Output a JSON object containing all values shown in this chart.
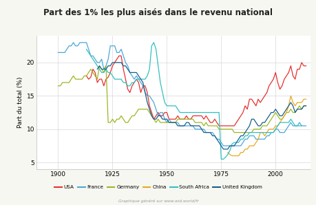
{
  "title": "Part des 1% les plus aisés dans le revenu national",
  "ylabel": "Part du total (%)",
  "footnote": "Graphique généré sur www.wid.world/fr",
  "background_color": "#f7f7f2",
  "plot_bg_color": "#ffffff",
  "ylim": [
    4,
    24
  ],
  "xlim": [
    1890,
    2016
  ],
  "xticks": [
    1900,
    1925,
    1950,
    1975,
    2000
  ],
  "yticks": [
    5,
    10,
    15,
    20
  ],
  "series": {
    "USA": {
      "color": "#e63030",
      "data": {
        "1913": 18.0,
        "1914": 17.5,
        "1915": 17.8,
        "1916": 19.0,
        "1917": 18.5,
        "1918": 17.0,
        "1919": 17.5,
        "1920": 17.5,
        "1921": 16.5,
        "1922": 17.5,
        "1923": 17.8,
        "1924": 18.5,
        "1925": 19.5,
        "1926": 20.0,
        "1927": 20.5,
        "1928": 21.0,
        "1929": 21.0,
        "1930": 19.0,
        "1931": 17.5,
        "1932": 16.0,
        "1933": 15.5,
        "1934": 16.5,
        "1935": 17.0,
        "1936": 17.5,
        "1937": 17.0,
        "1938": 15.5,
        "1939": 16.5,
        "1940": 16.5,
        "1941": 15.5,
        "1942": 13.5,
        "1943": 12.5,
        "1944": 11.5,
        "1945": 12.0,
        "1946": 12.5,
        "1947": 12.0,
        "1948": 12.0,
        "1949": 12.5,
        "1950": 12.5,
        "1951": 11.5,
        "1952": 11.5,
        "1953": 11.5,
        "1954": 11.5,
        "1955": 12.0,
        "1956": 11.5,
        "1957": 11.5,
        "1958": 11.5,
        "1959": 12.0,
        "1960": 11.5,
        "1961": 11.5,
        "1962": 12.0,
        "1963": 12.0,
        "1964": 12.0,
        "1965": 12.0,
        "1966": 12.0,
        "1967": 11.5,
        "1968": 12.0,
        "1969": 11.5,
        "1970": 11.0,
        "1971": 11.0,
        "1972": 11.5,
        "1973": 11.0,
        "1974": 10.5,
        "1975": 10.5,
        "1976": 10.5,
        "1977": 10.5,
        "1978": 10.5,
        "1979": 10.5,
        "1980": 10.5,
        "1981": 10.5,
        "1982": 11.0,
        "1983": 11.5,
        "1984": 12.0,
        "1985": 12.5,
        "1986": 13.5,
        "1987": 13.0,
        "1988": 14.5,
        "1989": 14.5,
        "1990": 14.0,
        "1991": 13.5,
        "1992": 14.5,
        "1993": 14.0,
        "1994": 14.5,
        "1995": 15.0,
        "1996": 15.5,
        "1997": 16.5,
        "1998": 17.0,
        "1999": 17.5,
        "2000": 18.5,
        "2001": 17.0,
        "2002": 16.0,
        "2003": 16.5,
        "2004": 17.5,
        "2005": 18.0,
        "2006": 18.5,
        "2007": 19.5,
        "2008": 18.0,
        "2009": 17.5,
        "2010": 19.0,
        "2011": 19.0,
        "2012": 20.0,
        "2013": 19.5,
        "2014": 19.5
      }
    },
    "France": {
      "color": "#4aa8d8",
      "data": {
        "1900": 21.5,
        "1901": 21.5,
        "1902": 21.5,
        "1903": 21.5,
        "1904": 22.0,
        "1905": 22.5,
        "1906": 22.5,
        "1907": 23.0,
        "1908": 22.5,
        "1909": 22.5,
        "1910": 23.0,
        "1911": 23.0,
        "1912": 23.0,
        "1913": 23.0,
        "1914": 22.0,
        "1915": 21.0,
        "1916": 21.0,
        "1917": 20.5,
        "1918": 20.0,
        "1919": 20.0,
        "1920": 20.5,
        "1921": 19.0,
        "1922": 19.5,
        "1923": 20.5,
        "1924": 22.5,
        "1925": 22.5,
        "1926": 22.5,
        "1927": 21.5,
        "1928": 21.5,
        "1929": 22.0,
        "1930": 21.0,
        "1931": 20.0,
        "1932": 19.5,
        "1933": 18.5,
        "1934": 18.0,
        "1935": 17.5,
        "1936": 18.0,
        "1937": 17.5,
        "1938": 17.0,
        "1939": 16.5,
        "1940": 15.5,
        "1941": 15.0,
        "1942": 15.0,
        "1943": 14.5,
        "1944": 14.0,
        "1945": 13.0,
        "1946": 12.0,
        "1947": 12.5,
        "1948": 12.5,
        "1949": 11.5,
        "1950": 11.0,
        "1951": 11.5,
        "1952": 11.0,
        "1953": 11.0,
        "1954": 11.0,
        "1955": 11.0,
        "1956": 10.5,
        "1957": 10.5,
        "1958": 10.5,
        "1959": 10.5,
        "1960": 10.5,
        "1961": 10.5,
        "1962": 10.5,
        "1963": 10.0,
        "1964": 10.0,
        "1965": 10.0,
        "1966": 10.0,
        "1967": 10.0,
        "1968": 9.5,
        "1969": 9.5,
        "1970": 9.5,
        "1971": 9.5,
        "1972": 9.0,
        "1973": 8.5,
        "1974": 8.5,
        "1975": 8.0,
        "1976": 7.5,
        "1977": 7.5,
        "1978": 7.5,
        "1979": 7.5,
        "1980": 7.5,
        "1981": 7.5,
        "1982": 7.5,
        "1983": 7.5,
        "1984": 7.5,
        "1985": 8.0,
        "1986": 8.5,
        "1987": 8.5,
        "1988": 9.0,
        "1989": 9.0,
        "1990": 9.0,
        "1991": 8.5,
        "1992": 8.5,
        "1993": 8.5,
        "1994": 8.5,
        "1995": 8.5,
        "1996": 9.0,
        "1997": 9.0,
        "1998": 9.5,
        "1999": 9.5,
        "2000": 10.0,
        "2001": 10.0,
        "2002": 9.5,
        "2003": 9.5,
        "2004": 9.5,
        "2005": 10.0,
        "2006": 10.5,
        "2007": 11.0,
        "2008": 10.5,
        "2009": 10.5,
        "2010": 10.5,
        "2011": 11.0,
        "2012": 10.5,
        "2013": 10.5,
        "2014": 10.5
      }
    },
    "Germany": {
      "color": "#9ab822",
      "data": {
        "1900": 16.5,
        "1901": 16.5,
        "1902": 17.0,
        "1903": 17.0,
        "1904": 17.0,
        "1905": 17.0,
        "1906": 17.5,
        "1907": 18.0,
        "1908": 17.5,
        "1909": 17.5,
        "1910": 17.5,
        "1911": 17.5,
        "1912": 18.0,
        "1913": 18.0,
        "1914": 18.5,
        "1915": 19.0,
        "1916": 18.5,
        "1917": 18.0,
        "1918": 17.5,
        "1919": 19.5,
        "1920": 19.0,
        "1921": 18.5,
        "1922": 19.5,
        "1923": 11.0,
        "1924": 11.0,
        "1925": 11.5,
        "1926": 11.0,
        "1927": 11.5,
        "1928": 11.5,
        "1929": 12.0,
        "1930": 11.5,
        "1931": 11.0,
        "1932": 11.0,
        "1933": 11.5,
        "1934": 12.0,
        "1935": 12.0,
        "1936": 12.5,
        "1937": 13.0,
        "1938": 13.0,
        "1939": 13.0,
        "1940": 13.0,
        "1941": 13.0,
        "1942": 12.5,
        "1943": 12.0,
        "1944": 11.5,
        "1945": 11.0,
        "1946": 11.5,
        "1947": 11.0,
        "1948": 11.0,
        "1949": 11.0,
        "1950": 11.0,
        "1951": 11.0,
        "1952": 11.0,
        "1953": 11.0,
        "1954": 11.0,
        "1955": 11.5,
        "1956": 11.5,
        "1957": 11.5,
        "1958": 11.5,
        "1959": 11.5,
        "1960": 11.5,
        "1961": 11.5,
        "1962": 11.5,
        "1963": 11.0,
        "1964": 11.0,
        "1965": 11.0,
        "1966": 11.0,
        "1967": 10.5,
        "1968": 11.0,
        "1969": 10.5,
        "1970": 10.5,
        "1971": 10.5,
        "1972": 10.5,
        "1973": 10.5,
        "1974": 10.0,
        "1975": 10.0,
        "1976": 10.0,
        "1977": 10.0,
        "1978": 10.0,
        "1979": 10.0,
        "1980": 10.0,
        "1981": 9.5,
        "1982": 9.5,
        "1983": 9.5,
        "1984": 9.5,
        "1985": 9.5,
        "1986": 9.5,
        "1987": 9.5,
        "1988": 9.5,
        "1989": 9.5,
        "1990": 10.0,
        "1991": 10.0,
        "1992": 10.0,
        "1993": 10.0,
        "1994": 10.5,
        "1995": 10.5,
        "1996": 10.5,
        "1997": 11.0,
        "1998": 11.5,
        "1999": 12.0,
        "2000": 12.5,
        "2001": 12.0,
        "2002": 11.5,
        "2003": 11.5,
        "2004": 12.0,
        "2005": 12.5,
        "2006": 12.5,
        "2007": 13.0,
        "2008": 12.5,
        "2009": 12.5,
        "2010": 13.0,
        "2011": 13.5,
        "2012": 13.0,
        "2013": 13.5,
        "2014": 13.5
      }
    },
    "China": {
      "color": "#e8a820",
      "data": {
        "1978": 6.5,
        "1979": 6.2,
        "1980": 6.0,
        "1981": 6.0,
        "1982": 6.0,
        "1983": 6.0,
        "1984": 6.5,
        "1985": 6.5,
        "1986": 7.0,
        "1987": 7.0,
        "1988": 7.5,
        "1989": 7.5,
        "1990": 7.5,
        "1991": 8.0,
        "1992": 8.5,
        "1993": 9.5,
        "1994": 9.5,
        "1995": 9.0,
        "1996": 9.5,
        "1997": 10.0,
        "1998": 10.0,
        "1999": 10.0,
        "2000": 10.5,
        "2001": 10.5,
        "2002": 11.0,
        "2003": 11.5,
        "2004": 12.0,
        "2005": 12.5,
        "2006": 13.5,
        "2007": 15.0,
        "2008": 14.0,
        "2009": 13.5,
        "2010": 14.0,
        "2011": 14.0,
        "2012": 14.0,
        "2013": 14.5,
        "2014": 14.5
      }
    },
    "South Africa": {
      "color": "#30c0c0",
      "data": {
        "1913": 22.0,
        "1914": 21.5,
        "1915": 21.0,
        "1916": 20.5,
        "1917": 20.0,
        "1918": 19.5,
        "1919": 19.0,
        "1920": 18.5,
        "1921": 18.5,
        "1922": 19.0,
        "1923": 18.5,
        "1924": 18.5,
        "1925": 18.0,
        "1926": 17.5,
        "1927": 17.5,
        "1928": 17.5,
        "1929": 17.5,
        "1930": 17.0,
        "1931": 17.0,
        "1932": 16.5,
        "1933": 16.5,
        "1934": 17.0,
        "1935": 17.0,
        "1936": 17.5,
        "1937": 17.5,
        "1938": 17.5,
        "1939": 17.5,
        "1940": 17.5,
        "1941": 18.0,
        "1942": 19.0,
        "1943": 22.5,
        "1944": 23.0,
        "1945": 22.0,
        "1946": 19.5,
        "1947": 17.0,
        "1948": 15.5,
        "1949": 14.0,
        "1950": 13.5,
        "1951": 13.5,
        "1952": 13.5,
        "1953": 13.5,
        "1954": 13.5,
        "1955": 13.0,
        "1956": 12.5,
        "1957": 12.5,
        "1958": 12.5,
        "1959": 12.5,
        "1960": 12.5,
        "1961": 12.5,
        "1962": 12.5,
        "1963": 12.5,
        "1964": 12.5,
        "1965": 12.5,
        "1966": 12.5,
        "1967": 12.5,
        "1968": 12.5,
        "1969": 12.5,
        "1970": 12.5,
        "1971": 12.5,
        "1972": 12.5,
        "1973": 12.5,
        "1974": 12.5,
        "1975": 5.5,
        "1976": 5.5,
        "1977": 5.8,
        "1978": 6.2,
        "1979": 6.8,
        "1980": 7.8,
        "1981": 8.0,
        "1982": 8.0,
        "1983": 8.0,
        "1984": 8.5,
        "1985": 8.5,
        "1986": 9.0,
        "1987": 9.0,
        "1988": 9.5,
        "1989": 9.5,
        "1990": 9.5,
        "1991": 9.5,
        "1992": 9.5,
        "1993": 9.5,
        "1994": 9.5,
        "1995": 9.5,
        "1996": 9.5,
        "1997": 9.5,
        "1998": 9.5,
        "1999": 9.5,
        "2000": 10.0,
        "2001": 10.5,
        "2002": 11.0,
        "2003": 11.0,
        "2004": 11.0,
        "2005": 11.0,
        "2006": 11.0,
        "2007": 11.5,
        "2008": 11.0,
        "2009": 10.5,
        "2010": 10.5,
        "2011": 10.5,
        "2012": 10.5
      }
    },
    "United Kingdom": {
      "color": "#1a5c8a",
      "data": {
        "1918": 19.0,
        "1919": 19.5,
        "1920": 19.0,
        "1921": 19.0,
        "1922": 19.0,
        "1923": 19.5,
        "1924": 19.5,
        "1925": 20.0,
        "1926": 20.0,
        "1927": 20.0,
        "1928": 20.0,
        "1929": 20.0,
        "1930": 19.5,
        "1931": 19.5,
        "1932": 19.0,
        "1933": 18.5,
        "1934": 18.5,
        "1935": 18.5,
        "1936": 18.5,
        "1937": 18.0,
        "1938": 17.5,
        "1939": 17.0,
        "1940": 15.5,
        "1941": 14.0,
        "1942": 13.0,
        "1943": 12.0,
        "1944": 11.5,
        "1945": 11.5,
        "1946": 12.0,
        "1947": 12.0,
        "1948": 11.5,
        "1949": 11.5,
        "1950": 11.5,
        "1951": 11.0,
        "1952": 11.0,
        "1953": 11.0,
        "1954": 11.0,
        "1955": 10.5,
        "1956": 10.5,
        "1957": 10.5,
        "1958": 10.5,
        "1959": 11.0,
        "1960": 11.0,
        "1961": 10.5,
        "1962": 10.5,
        "1963": 10.5,
        "1964": 10.5,
        "1965": 10.5,
        "1966": 10.0,
        "1967": 9.5,
        "1968": 9.5,
        "1969": 9.5,
        "1970": 9.5,
        "1971": 9.0,
        "1972": 9.0,
        "1973": 8.5,
        "1974": 8.0,
        "1975": 7.5,
        "1976": 7.0,
        "1977": 7.0,
        "1978": 7.0,
        "1979": 7.5,
        "1980": 7.5,
        "1981": 7.5,
        "1982": 8.0,
        "1983": 8.5,
        "1984": 9.0,
        "1985": 9.0,
        "1986": 9.5,
        "1987": 10.0,
        "1988": 10.5,
        "1989": 11.5,
        "1990": 11.5,
        "1991": 11.0,
        "1992": 10.5,
        "1993": 10.5,
        "1994": 11.0,
        "1995": 11.0,
        "1996": 11.5,
        "1997": 12.0,
        "1998": 12.5,
        "1999": 12.5,
        "2000": 13.0,
        "2001": 12.5,
        "2002": 12.0,
        "2003": 12.0,
        "2004": 12.5,
        "2005": 13.0,
        "2006": 13.5,
        "2007": 14.0,
        "2008": 13.5,
        "2009": 12.5,
        "2010": 13.0,
        "2011": 13.0,
        "2012": 13.0,
        "2013": 13.5,
        "2014": 13.5
      }
    }
  },
  "legend_order": [
    "USA",
    "France",
    "Germany",
    "China",
    "South Africa",
    "United Kingdom"
  ]
}
